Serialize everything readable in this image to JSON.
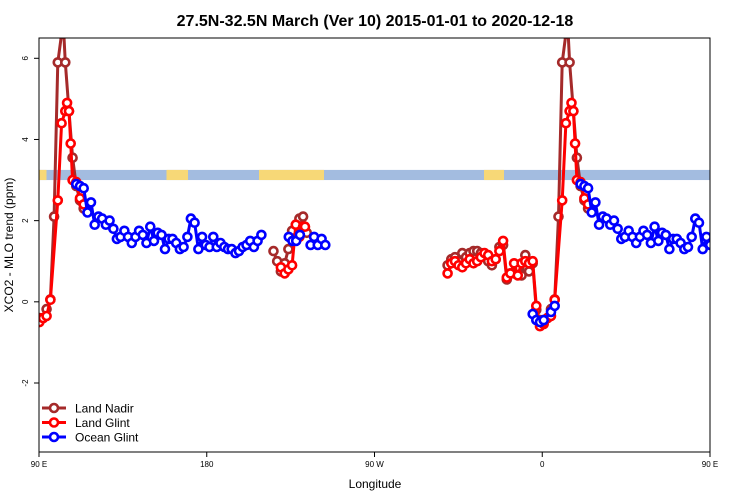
{
  "chart_data": {
    "type": "line",
    "title": "27.5N-32.5N March (Ver 10)   2015-01-01 to 2020-12-18",
    "xlabel": "Longitude",
    "ylabel": "XCO2 - MLO trend (ppm)",
    "xlim": [
      90,
      450
    ],
    "ylim": [
      -3.7,
      6.5
    ],
    "grid": false,
    "legend_position": "bottom-left",
    "x_ticks": [
      {
        "value": 90,
        "label": "90 E"
      },
      {
        "value": 180,
        "label": "180"
      },
      {
        "value": 270,
        "label": "90 W"
      },
      {
        "value": 360,
        "label": "0"
      },
      {
        "value": 450,
        "label": "90 E"
      },
      {
        "value": 540,
        "label": "180"
      }
    ],
    "y_ticks": [
      {
        "value": -2,
        "label": "-2"
      },
      {
        "value": 0,
        "label": "0"
      },
      {
        "value": 2,
        "label": "2"
      },
      {
        "value": 4,
        "label": "4"
      },
      {
        "value": 6,
        "label": "6"
      }
    ],
    "land_strip": {
      "y_range": [
        3.0,
        3.25
      ],
      "ocean_color": "#a3bce0",
      "land_color": "#f7d877",
      "land_segments": [
        [
          0,
          7.5
        ],
        [
          127.5,
          149
        ],
        [
          220,
          285
        ],
        [
          445,
          465
        ]
      ]
    },
    "series": [
      {
        "name": "Land Nadir",
        "color": "#a52a2a",
        "segments": [
          [
            [
              90.2,
              -0.4
            ],
            [
              92.2,
              -0.4
            ],
            [
              94.1,
              -0.18
            ],
            [
              96.1,
              0.06
            ],
            [
              98.1,
              2.1
            ],
            [
              100.1,
              5.9
            ],
            [
              102.1,
              6.6
            ],
            [
              103.1,
              6.8
            ],
            [
              104.1,
              5.9
            ],
            [
              106.1,
              4.7
            ],
            [
              108.0,
              3.55
            ],
            [
              110.0,
              2.85
            ],
            [
              112.0,
              2.5
            ],
            [
              114.0,
              2.3
            ]
          ],
          [
            [
              215.8,
              1.25
            ],
            [
              217.8,
              1.0
            ],
            [
              219.8,
              0.75
            ],
            [
              221.8,
              0.95
            ],
            [
              223.8,
              1.3
            ],
            [
              225.8,
              1.75
            ],
            [
              227.8,
              1.9
            ],
            [
              229.7,
              2.05
            ],
            [
              231.7,
              2.1
            ],
            [
              233.7,
              1.7
            ]
          ],
          [
            [
              309.2,
              0.9
            ],
            [
              311.2,
              1.05
            ],
            [
              313.2,
              1.1
            ],
            [
              315.1,
              1.0
            ],
            [
              317.1,
              1.2
            ],
            [
              319.1,
              1.1
            ],
            [
              321.1,
              1.2
            ],
            [
              323.1,
              1.25
            ],
            [
              325.1,
              1.25
            ],
            [
              327.1,
              1.2
            ],
            [
              329.0,
              1.1
            ],
            [
              331.0,
              1.0
            ],
            [
              333.0,
              0.9
            ],
            [
              335.0,
              1.05
            ],
            [
              337.0,
              1.35
            ],
            [
              339.0,
              1.4
            ],
            [
              341.0,
              0.55
            ],
            [
              342.9,
              0.7
            ],
            [
              344.9,
              0.7
            ],
            [
              346.9,
              0.85
            ],
            [
              348.9,
              0.65
            ],
            [
              350.9,
              1.15
            ],
            [
              352.9,
              0.75
            ],
            [
              354.9,
              0.95
            ],
            [
              356.8,
              -0.2
            ],
            [
              358.8,
              -0.45
            ],
            [
              360.8,
              -0.45
            ]
          ],
          [
            [
              360.8,
              -0.45
            ],
            [
              362.8,
              -0.4
            ],
            [
              364.7,
              -0.18
            ],
            [
              366.7,
              0.06
            ],
            [
              368.7,
              2.1
            ],
            [
              370.7,
              5.9
            ],
            [
              372.7,
              6.6
            ],
            [
              373.7,
              6.8
            ],
            [
              374.7,
              5.9
            ],
            [
              376.7,
              4.7
            ],
            [
              378.6,
              3.55
            ],
            [
              380.6,
              2.85
            ],
            [
              382.6,
              2.5
            ],
            [
              384.6,
              2.3
            ]
          ]
        ]
      },
      {
        "name": "Land Glint",
        "color": "#ff0000",
        "segments": [
          [
            [
              90.2,
              -0.5
            ],
            [
              92.2,
              -0.4
            ],
            [
              94.1,
              -0.35
            ],
            [
              96.1,
              0.05
            ],
            [
              100.1,
              2.5
            ],
            [
              102.1,
              4.4
            ],
            [
              104.1,
              4.7
            ],
            [
              105.1,
              4.9
            ],
            [
              106.1,
              4.7
            ],
            [
              107.0,
              3.9
            ],
            [
              108.0,
              3.0
            ],
            [
              110.0,
              2.95
            ],
            [
              112.0,
              2.55
            ],
            [
              114.0,
              2.4
            ]
          ],
          [
            [
              219.8,
              0.85
            ],
            [
              221.8,
              0.7
            ],
            [
              223.8,
              0.8
            ],
            [
              225.8,
              0.9
            ],
            [
              227.8,
              1.9
            ],
            [
              229.7,
              1.6
            ],
            [
              231.7,
              1.85
            ],
            [
              232.7,
              1.85
            ]
          ],
          [
            [
              309.2,
              0.7
            ],
            [
              311.2,
              0.95
            ],
            [
              313.2,
              1.0
            ],
            [
              315.1,
              0.9
            ],
            [
              317.1,
              0.85
            ],
            [
              319.1,
              0.95
            ],
            [
              321.1,
              1.05
            ],
            [
              323.1,
              0.95
            ],
            [
              325.1,
              1.0
            ],
            [
              327.1,
              1.1
            ],
            [
              329.0,
              1.2
            ],
            [
              331.0,
              1.15
            ],
            [
              333.0,
              1.0
            ],
            [
              335.0,
              1.05
            ],
            [
              337.0,
              1.25
            ],
            [
              339.0,
              1.5
            ],
            [
              341.0,
              0.6
            ],
            [
              342.9,
              0.7
            ],
            [
              344.9,
              0.95
            ],
            [
              346.9,
              0.65
            ],
            [
              348.9,
              0.95
            ],
            [
              350.9,
              1.0
            ],
            [
              352.9,
              0.95
            ],
            [
              354.9,
              1.0
            ],
            [
              356.8,
              -0.1
            ],
            [
              358.8,
              -0.6
            ],
            [
              360.8,
              -0.55
            ]
          ],
          [
            [
              360.8,
              -0.5
            ],
            [
              362.8,
              -0.4
            ],
            [
              364.7,
              -0.35
            ],
            [
              366.7,
              0.05
            ],
            [
              370.7,
              2.5
            ],
            [
              372.7,
              4.4
            ],
            [
              374.7,
              4.7
            ],
            [
              375.7,
              4.9
            ],
            [
              376.7,
              4.7
            ],
            [
              377.6,
              3.9
            ],
            [
              378.6,
              3.0
            ],
            [
              380.6,
              2.95
            ],
            [
              382.6,
              2.55
            ],
            [
              384.6,
              2.4
            ]
          ]
        ]
      },
      {
        "name": "Ocean Glint",
        "color": "#0000ff",
        "segments": [
          [
            [
              110.0,
              2.9
            ],
            [
              112.0,
              2.85
            ],
            [
              114.0,
              2.8
            ],
            [
              116.0,
              2.2
            ],
            [
              117.9,
              2.45
            ],
            [
              119.9,
              1.9
            ],
            [
              121.9,
              2.1
            ],
            [
              123.9,
              2.05
            ],
            [
              125.9,
              1.9
            ],
            [
              127.9,
              2.0
            ],
            [
              129.9,
              1.8
            ],
            [
              131.8,
              1.55
            ],
            [
              133.8,
              1.6
            ],
            [
              135.8,
              1.75
            ],
            [
              137.8,
              1.6
            ],
            [
              139.8,
              1.45
            ],
            [
              141.8,
              1.6
            ],
            [
              143.7,
              1.75
            ],
            [
              145.7,
              1.65
            ],
            [
              147.7,
              1.45
            ],
            [
              149.7,
              1.85
            ],
            [
              151.7,
              1.5
            ],
            [
              153.7,
              1.7
            ],
            [
              155.7,
              1.65
            ],
            [
              157.6,
              1.3
            ],
            [
              159.6,
              1.55
            ],
            [
              161.6,
              1.55
            ],
            [
              163.6,
              1.45
            ],
            [
              165.6,
              1.3
            ],
            [
              167.6,
              1.35
            ],
            [
              169.6,
              1.6
            ],
            [
              171.5,
              2.05
            ],
            [
              173.5,
              1.95
            ],
            [
              175.5,
              1.3
            ],
            [
              177.5,
              1.6
            ],
            [
              179.5,
              1.4
            ],
            [
              181.5,
              1.35
            ],
            [
              183.5,
              1.6
            ],
            [
              185.4,
              1.35
            ],
            [
              187.4,
              1.45
            ],
            [
              189.4,
              1.35
            ],
            [
              191.4,
              1.3
            ],
            [
              193.4,
              1.3
            ],
            [
              195.4,
              1.2
            ],
            [
              197.3,
              1.25
            ],
            [
              199.3,
              1.35
            ],
            [
              201.3,
              1.4
            ],
            [
              203.3,
              1.5
            ],
            [
              205.3,
              1.35
            ],
            [
              207.3,
              1.5
            ],
            [
              209.3,
              1.65
            ]
          ],
          [
            [
              224.0,
              1.6
            ],
            [
              226.0,
              1.5
            ],
            [
              228.0,
              1.5
            ],
            [
              230.0,
              1.65
            ]
          ],
          [
            [
              235.7,
              1.4
            ],
            [
              237.6,
              1.6
            ],
            [
              239.6,
              1.4
            ],
            [
              241.6,
              1.55
            ],
            [
              243.6,
              1.4
            ]
          ],
          [
            [
              354.9,
              -0.3
            ],
            [
              356.8,
              -0.45
            ],
            [
              358.8,
              -0.5
            ],
            [
              360.8,
              -0.45
            ],
            [
              364.7,
              -0.25
            ],
            [
              366.7,
              -0.1
            ]
          ],
          [
            [
              380.6,
              2.9
            ],
            [
              382.6,
              2.85
            ],
            [
              384.6,
              2.8
            ],
            [
              386.6,
              2.2
            ],
            [
              388.5,
              2.45
            ],
            [
              390.5,
              1.9
            ],
            [
              392.5,
              2.1
            ],
            [
              394.5,
              2.05
            ],
            [
              396.5,
              1.9
            ],
            [
              398.5,
              2.0
            ],
            [
              400.5,
              1.8
            ],
            [
              402.4,
              1.55
            ],
            [
              404.4,
              1.6
            ],
            [
              406.4,
              1.75
            ],
            [
              408.4,
              1.6
            ],
            [
              410.4,
              1.45
            ],
            [
              412.4,
              1.6
            ],
            [
              414.3,
              1.75
            ],
            [
              416.3,
              1.65
            ],
            [
              418.3,
              1.45
            ],
            [
              420.3,
              1.85
            ],
            [
              422.3,
              1.5
            ],
            [
              424.3,
              1.7
            ],
            [
              426.3,
              1.65
            ],
            [
              428.2,
              1.3
            ],
            [
              430.2,
              1.55
            ],
            [
              432.2,
              1.55
            ],
            [
              434.2,
              1.45
            ],
            [
              436.2,
              1.3
            ],
            [
              438.2,
              1.35
            ],
            [
              440.2,
              1.6
            ],
            [
              442.1,
              2.05
            ],
            [
              444.1,
              1.95
            ],
            [
              446.1,
              1.3
            ],
            [
              448.1,
              1.6
            ],
            [
              450.1,
              1.4
            ]
          ]
        ]
      }
    ]
  }
}
